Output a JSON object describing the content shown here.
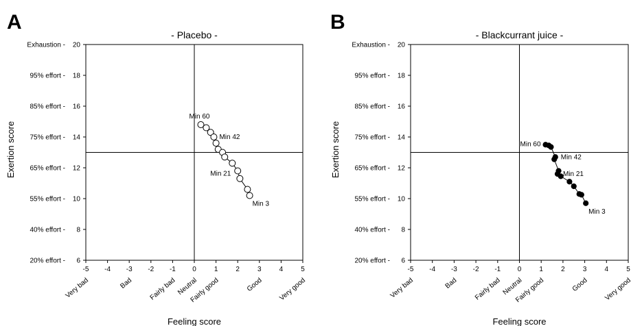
{
  "figure": {
    "panels": [
      {
        "letter": "A",
        "title": "- Placebo -",
        "marker": "open",
        "point_labels": [
          {
            "index": 0,
            "text": "Min 60",
            "anchor": "left-above"
          },
          {
            "index": 3,
            "text": "Min 42",
            "anchor": "right"
          },
          {
            "index": 8,
            "text": "Min 21",
            "anchor": "left-below"
          },
          {
            "index": 12,
            "text": "Min 3",
            "anchor": "right-below"
          }
        ]
      },
      {
        "letter": "B",
        "title": "- Blackcurrant juice -",
        "marker": "filled",
        "point_labels": [
          {
            "index": 0,
            "text": "Min 60",
            "anchor": "left"
          },
          {
            "index": 3,
            "text": "Min 42",
            "anchor": "right"
          },
          {
            "index": 6,
            "text": "Min 21",
            "anchor": "right"
          },
          {
            "index": 12,
            "text": "Min 3",
            "anchor": "right-below"
          }
        ]
      }
    ]
  },
  "chart_data": [
    {
      "type": "scatter",
      "title": "- Placebo -",
      "xlabel": "Feeling score",
      "ylabel": "Exertion score",
      "xlim": [
        -5,
        5
      ],
      "ylim": [
        6,
        20
      ],
      "x_ticks": [
        -5,
        -4,
        -3,
        -2,
        -1,
        0,
        1,
        2,
        3,
        4,
        5
      ],
      "y_ticks": [
        6,
        8,
        10,
        12,
        14,
        16,
        18,
        20
      ],
      "y_tick_labels": [
        "20% effort -",
        "40% effort -",
        "55% effort -",
        "65% effort -",
        "75% effort -",
        "85% effort -",
        "95% effort -",
        "Exhaustion -"
      ],
      "x_category_labels": [
        {
          "x": -5,
          "text": "Very bad"
        },
        {
          "x": -3,
          "text": "Bad"
        },
        {
          "x": -1,
          "text": "Fairly bad"
        },
        {
          "x": 0,
          "text": "Neutral"
        },
        {
          "x": 1,
          "text": "Fairly good"
        },
        {
          "x": 3,
          "text": "Good"
        },
        {
          "x": 5,
          "text": "Very good"
        }
      ],
      "reference_lines": {
        "x": 0,
        "y": 13
      },
      "series": [
        {
          "points": [
            [
              0.3,
              14.8
            ],
            [
              0.55,
              14.6
            ],
            [
              0.75,
              14.3
            ],
            [
              0.9,
              14.0
            ],
            [
              1.0,
              13.6
            ],
            [
              1.1,
              13.2
            ],
            [
              1.3,
              13.0
            ],
            [
              1.4,
              12.7
            ],
            [
              1.75,
              12.3
            ],
            [
              2.0,
              11.8
            ],
            [
              2.1,
              11.3
            ],
            [
              2.45,
              10.6
            ],
            [
              2.55,
              10.2
            ]
          ]
        }
      ]
    },
    {
      "type": "scatter",
      "title": "- Blackcurrant juice -",
      "xlabel": "Feeling score",
      "ylabel": "Exertion score",
      "xlim": [
        -5,
        5
      ],
      "ylim": [
        6,
        20
      ],
      "x_ticks": [
        -5,
        -4,
        -3,
        -2,
        -1,
        0,
        1,
        2,
        3,
        4,
        5
      ],
      "y_ticks": [
        6,
        8,
        10,
        12,
        14,
        16,
        18,
        20
      ],
      "y_tick_labels": [
        "20% effort -",
        "40% effort -",
        "55% effort -",
        "65% effort -",
        "75% effort -",
        "85% effort -",
        "95% effort -",
        "Exhaustion -"
      ],
      "x_category_labels": [
        {
          "x": -5,
          "text": "Very bad"
        },
        {
          "x": -3,
          "text": "Bad"
        },
        {
          "x": -1,
          "text": "Fairly bad"
        },
        {
          "x": 0,
          "text": "Neutral"
        },
        {
          "x": 1,
          "text": "Fairly good"
        },
        {
          "x": 3,
          "text": "Good"
        },
        {
          "x": 5,
          "text": "Very good"
        }
      ],
      "reference_lines": {
        "x": 0,
        "y": 13
      },
      "series": [
        {
          "points": [
            [
              1.2,
              13.5
            ],
            [
              1.35,
              13.45
            ],
            [
              1.45,
              13.35
            ],
            [
              1.65,
              12.7
            ],
            [
              1.6,
              12.55
            ],
            [
              1.8,
              11.8
            ],
            [
              1.75,
              11.6
            ],
            [
              1.9,
              11.45
            ],
            [
              2.3,
              11.1
            ],
            [
              2.5,
              10.8
            ],
            [
              2.75,
              10.3
            ],
            [
              2.85,
              10.25
            ],
            [
              3.05,
              9.7
            ]
          ]
        }
      ]
    }
  ]
}
